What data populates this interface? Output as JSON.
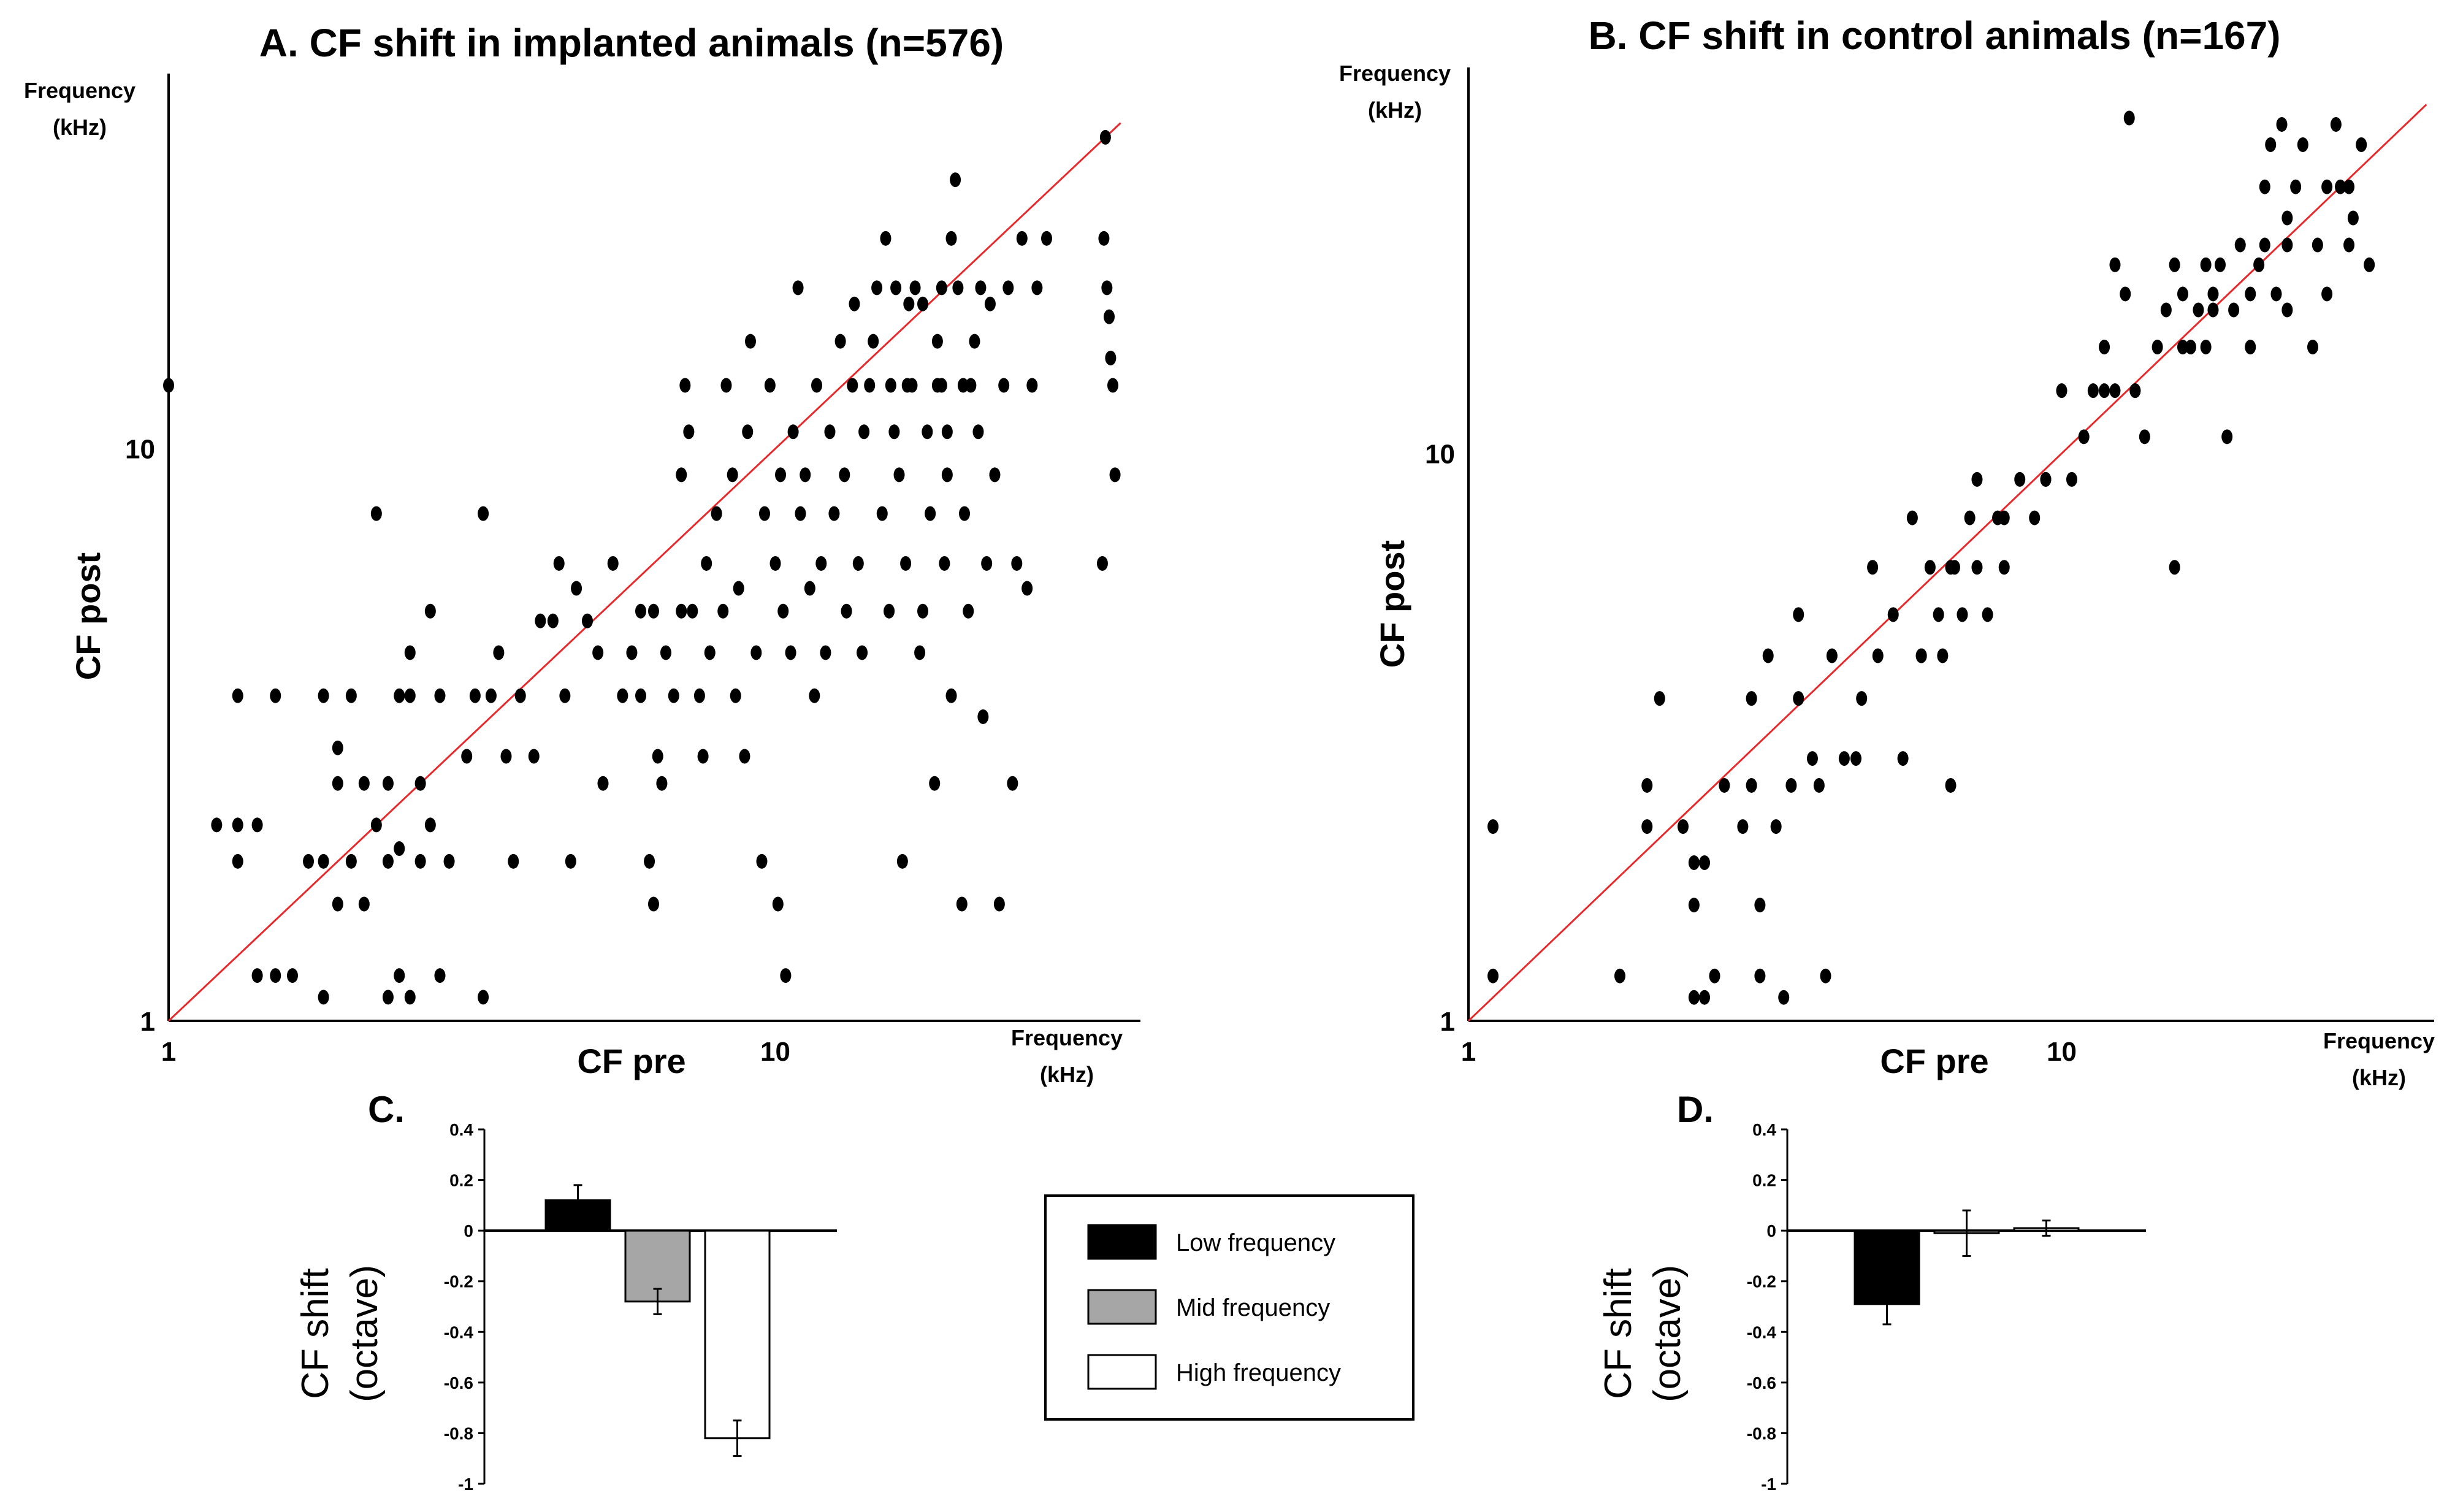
{
  "chart_data": [
    {
      "id": "A",
      "type": "scatter",
      "title": "A. CF shift in implanted animals (n=576)",
      "xlabel": "CF pre",
      "ylabel": "CF post",
      "x_unit": [
        "Frequency",
        "(kHz)"
      ],
      "y_unit": [
        "Frequency",
        "(kHz)"
      ],
      "x_scale": "log",
      "y_scale": "log",
      "xlim": [
        1,
        36
      ],
      "ylim": [
        1,
        42
      ],
      "xticks": [
        {
          "v": 1,
          "label": "1"
        },
        {
          "v": 10,
          "label": "10"
        }
      ],
      "yticks": [
        {
          "v": 1,
          "label": "1"
        },
        {
          "v": 10,
          "label": "10"
        }
      ],
      "identity_line": true,
      "points": [
        [
          1.0,
          12.9
        ],
        [
          1.2,
          2.2
        ],
        [
          1.3,
          2.2
        ],
        [
          1.3,
          1.9
        ],
        [
          1.3,
          3.7
        ],
        [
          1.4,
          1.2
        ],
        [
          1.4,
          2.2
        ],
        [
          1.5,
          1.2
        ],
        [
          1.5,
          3.7
        ],
        [
          1.6,
          1.2
        ],
        [
          1.7,
          1.9
        ],
        [
          1.8,
          1.1
        ],
        [
          1.8,
          1.9
        ],
        [
          1.8,
          3.7
        ],
        [
          1.9,
          3.0
        ],
        [
          1.9,
          1.6
        ],
        [
          1.9,
          2.6
        ],
        [
          2.0,
          3.7
        ],
        [
          2.0,
          1.9
        ],
        [
          2.1,
          1.6
        ],
        [
          2.1,
          2.6
        ],
        [
          2.2,
          7.7
        ],
        [
          2.2,
          2.2
        ],
        [
          2.3,
          1.1
        ],
        [
          2.3,
          1.9
        ],
        [
          2.3,
          2.6
        ],
        [
          2.4,
          1.2
        ],
        [
          2.4,
          2.0
        ],
        [
          2.4,
          3.7
        ],
        [
          2.5,
          1.1
        ],
        [
          2.5,
          4.4
        ],
        [
          2.5,
          3.7
        ],
        [
          2.6,
          2.6
        ],
        [
          2.6,
          1.9
        ],
        [
          2.7,
          5.2
        ],
        [
          2.7,
          2.2
        ],
        [
          2.8,
          1.2
        ],
        [
          2.8,
          3.7
        ],
        [
          2.9,
          1.9
        ],
        [
          3.1,
          2.9
        ],
        [
          3.2,
          3.7
        ],
        [
          3.3,
          1.1
        ],
        [
          3.3,
          7.7
        ],
        [
          3.4,
          3.7
        ],
        [
          3.5,
          4.4
        ],
        [
          3.6,
          2.9
        ],
        [
          3.7,
          1.9
        ],
        [
          3.8,
          3.7
        ],
        [
          4.0,
          2.9
        ],
        [
          4.1,
          5.0
        ],
        [
          4.3,
          5.0
        ],
        [
          4.4,
          6.3
        ],
        [
          4.5,
          3.7
        ],
        [
          4.6,
          1.9
        ],
        [
          4.7,
          5.7
        ],
        [
          4.9,
          5.0
        ],
        [
          5.1,
          4.4
        ],
        [
          5.2,
          2.6
        ],
        [
          5.4,
          6.3
        ],
        [
          5.6,
          3.7
        ],
        [
          5.8,
          4.4
        ],
        [
          6.0,
          3.7
        ],
        [
          6.0,
          5.2
        ],
        [
          6.2,
          1.9
        ],
        [
          6.3,
          1.6
        ],
        [
          6.3,
          5.2
        ],
        [
          6.4,
          2.9
        ],
        [
          6.5,
          2.6
        ],
        [
          6.6,
          4.4
        ],
        [
          6.8,
          3.7
        ],
        [
          7.0,
          5.2
        ],
        [
          7.0,
          9.0
        ],
        [
          7.1,
          12.9
        ],
        [
          7.2,
          10.7
        ],
        [
          7.3,
          5.2
        ],
        [
          7.5,
          3.7
        ],
        [
          7.6,
          2.9
        ],
        [
          7.7,
          6.3
        ],
        [
          7.8,
          4.4
        ],
        [
          8.0,
          7.7
        ],
        [
          8.2,
          5.2
        ],
        [
          8.3,
          12.9
        ],
        [
          8.5,
          9.0
        ],
        [
          8.6,
          3.7
        ],
        [
          8.7,
          5.7
        ],
        [
          8.9,
          2.9
        ],
        [
          9.0,
          10.7
        ],
        [
          9.1,
          15.4
        ],
        [
          9.3,
          4.4
        ],
        [
          9.5,
          1.9
        ],
        [
          9.6,
          7.7
        ],
        [
          9.8,
          12.9
        ],
        [
          10.0,
          6.3
        ],
        [
          10.1,
          1.6
        ],
        [
          10.2,
          9.0
        ],
        [
          10.3,
          5.2
        ],
        [
          10.4,
          1.2
        ],
        [
          10.6,
          4.4
        ],
        [
          10.7,
          10.7
        ],
        [
          10.9,
          19.1
        ],
        [
          11.0,
          7.7
        ],
        [
          11.2,
          9.0
        ],
        [
          11.4,
          5.7
        ],
        [
          11.6,
          3.7
        ],
        [
          11.7,
          12.9
        ],
        [
          11.9,
          6.3
        ],
        [
          12.1,
          4.4
        ],
        [
          12.3,
          10.7
        ],
        [
          12.5,
          7.7
        ],
        [
          12.8,
          15.4
        ],
        [
          13.0,
          9.0
        ],
        [
          13.1,
          5.2
        ],
        [
          13.4,
          12.9
        ],
        [
          13.5,
          17.9
        ],
        [
          13.7,
          6.3
        ],
        [
          13.9,
          4.4
        ],
        [
          14.0,
          10.7
        ],
        [
          14.3,
          12.9
        ],
        [
          14.5,
          15.4
        ],
        [
          14.7,
          19.1
        ],
        [
          15.0,
          7.7
        ],
        [
          15.2,
          23.3
        ],
        [
          15.4,
          5.2
        ],
        [
          15.5,
          12.9
        ],
        [
          15.7,
          10.7
        ],
        [
          16.0,
          9.0
        ],
        [
          16.2,
          1.9
        ],
        [
          16.4,
          6.3
        ],
        [
          16.6,
          17.9
        ],
        [
          16.8,
          12.9
        ],
        [
          17.0,
          19.1
        ],
        [
          17.3,
          4.4
        ],
        [
          17.5,
          5.2
        ],
        [
          17.8,
          10.7
        ],
        [
          18.0,
          7.7
        ],
        [
          18.3,
          2.6
        ],
        [
          18.5,
          15.4
        ],
        [
          18.8,
          12.9
        ],
        [
          19.0,
          6.3
        ],
        [
          19.2,
          9.0
        ],
        [
          19.5,
          3.7
        ],
        [
          19.8,
          29.5
        ],
        [
          20.0,
          19.1
        ],
        [
          20.3,
          1.6
        ],
        [
          20.5,
          7.7
        ],
        [
          20.8,
          5.2
        ],
        [
          21.0,
          12.9
        ],
        [
          21.3,
          15.4
        ],
        [
          21.6,
          10.7
        ],
        [
          22.0,
          3.4
        ],
        [
          22.3,
          6.3
        ],
        [
          22.6,
          17.9
        ],
        [
          23.0,
          9.0
        ],
        [
          23.4,
          1.6
        ],
        [
          23.8,
          12.9
        ],
        [
          24.2,
          19.1
        ],
        [
          24.6,
          2.6
        ],
        [
          25.0,
          6.3
        ],
        [
          25.5,
          23.3
        ],
        [
          26.0,
          5.7
        ],
        [
          26.5,
          12.9
        ],
        [
          27.0,
          19.1
        ],
        [
          28.0,
          23.3
        ],
        [
          35.0,
          35.0
        ],
        [
          34.8,
          23.3
        ],
        [
          35.2,
          19.1
        ],
        [
          35.5,
          17.0
        ],
        [
          35.7,
          14.4
        ],
        [
          36.0,
          12.9
        ],
        [
          36.3,
          9.0
        ],
        [
          34.6,
          6.3
        ],
        [
          18.8,
          19.1
        ],
        [
          19.5,
          23.3
        ],
        [
          18.5,
          12.9
        ],
        [
          16.5,
          12.9
        ],
        [
          17.5,
          17.9
        ],
        [
          15.8,
          19.1
        ],
        [
          20.4,
          12.9
        ],
        [
          21.8,
          19.1
        ],
        [
          19.2,
          10.7
        ]
      ]
    },
    {
      "id": "B",
      "type": "scatter",
      "title": "B. CF shift in control animals (n=167)",
      "xlabel": "CF pre",
      "ylabel": "CF post",
      "x_unit": [
        "Frequency",
        "(kHz)"
      ],
      "y_unit": [
        "Frequency",
        "(kHz)"
      ],
      "x_scale": "log",
      "y_scale": "log",
      "xlim": [
        1,
        40
      ],
      "ylim": [
        1,
        45
      ],
      "xticks": [
        {
          "v": 1,
          "label": "1"
        },
        {
          "v": 10,
          "label": "10"
        }
      ],
      "yticks": [
        {
          "v": 1,
          "label": "1"
        },
        {
          "v": 10,
          "label": "10"
        }
      ],
      "identity_line": true,
      "points": [
        [
          1.1,
          1.2
        ],
        [
          1.1,
          2.2
        ],
        [
          1.8,
          1.2
        ],
        [
          2.0,
          2.2
        ],
        [
          2.0,
          2.6
        ],
        [
          2.1,
          3.7
        ],
        [
          2.3,
          2.2
        ],
        [
          2.4,
          1.1
        ],
        [
          2.4,
          1.9
        ],
        [
          2.4,
          1.6
        ],
        [
          2.5,
          1.1
        ],
        [
          2.5,
          1.9
        ],
        [
          2.6,
          1.2
        ],
        [
          2.7,
          2.6
        ],
        [
          2.9,
          2.2
        ],
        [
          3.0,
          2.6
        ],
        [
          3.0,
          3.7
        ],
        [
          3.1,
          1.6
        ],
        [
          3.1,
          1.2
        ],
        [
          3.2,
          4.4
        ],
        [
          3.3,
          2.2
        ],
        [
          3.4,
          1.1
        ],
        [
          3.5,
          2.6
        ],
        [
          3.6,
          5.2
        ],
        [
          3.8,
          2.9
        ],
        [
          3.9,
          2.6
        ],
        [
          4.0,
          1.2
        ],
        [
          4.1,
          4.4
        ],
        [
          4.3,
          2.9
        ],
        [
          4.5,
          2.9
        ],
        [
          4.6,
          3.7
        ],
        [
          4.8,
          6.3
        ],
        [
          4.9,
          4.4
        ],
        [
          5.2,
          5.2
        ],
        [
          5.4,
          2.9
        ],
        [
          5.6,
          7.7
        ],
        [
          5.8,
          4.4
        ],
        [
          6.0,
          6.3
        ],
        [
          6.2,
          5.2
        ],
        [
          6.3,
          4.4
        ],
        [
          6.5,
          2.6
        ],
        [
          6.6,
          6.3
        ],
        [
          6.8,
          5.2
        ],
        [
          7.0,
          7.7
        ],
        [
          7.2,
          9.0
        ],
        [
          7.5,
          5.2
        ],
        [
          7.8,
          7.7
        ],
        [
          8.0,
          6.3
        ],
        [
          8.5,
          9.0
        ],
        [
          9.0,
          7.7
        ],
        [
          9.4,
          9.0
        ],
        [
          10.0,
          12.9
        ],
        [
          10.4,
          9.0
        ],
        [
          10.9,
          10.7
        ],
        [
          11.3,
          12.9
        ],
        [
          11.8,
          15.4
        ],
        [
          12.3,
          12.9
        ],
        [
          12.8,
          19.1
        ],
        [
          13.3,
          12.9
        ],
        [
          13.8,
          10.7
        ],
        [
          14.5,
          15.4
        ],
        [
          15.0,
          17.9
        ],
        [
          15.5,
          6.3
        ],
        [
          16.0,
          19.1
        ],
        [
          16.5,
          15.4
        ],
        [
          17.0,
          17.9
        ],
        [
          17.5,
          15.4
        ],
        [
          18.0,
          19.1
        ],
        [
          18.5,
          21.5
        ],
        [
          19.0,
          10.7
        ],
        [
          19.5,
          17.9
        ],
        [
          20.0,
          23.3
        ],
        [
          20.8,
          15.4
        ],
        [
          21.5,
          21.5
        ],
        [
          22.0,
          29.5
        ],
        [
          22.5,
          35.0
        ],
        [
          23.0,
          19.1
        ],
        [
          23.5,
          38.0
        ],
        [
          24.0,
          26.0
        ],
        [
          24.8,
          29.5
        ],
        [
          25.5,
          35.0
        ],
        [
          26.5,
          15.4
        ],
        [
          27.0,
          23.3
        ],
        [
          28.0,
          19.1
        ],
        [
          29.0,
          38.0
        ],
        [
          29.5,
          29.5
        ],
        [
          30.5,
          23.3
        ],
        [
          31.0,
          26.0
        ],
        [
          32.0,
          35.0
        ],
        [
          33.0,
          21.5
        ],
        [
          15.5,
          21.5
        ],
        [
          12.3,
          21.5
        ],
        [
          24.0,
          17.9
        ],
        [
          22.0,
          23.3
        ],
        [
          17.5,
          21.5
        ],
        [
          9.4,
          9.0
        ],
        [
          6.5,
          6.3
        ],
        [
          13.3,
          12.9
        ],
        [
          18.0,
          17.9
        ],
        [
          28.0,
          29.5
        ],
        [
          8.0,
          7.7
        ],
        [
          5.8,
          4.4
        ],
        [
          16.0,
          15.4
        ],
        [
          24.0,
          23.3
        ],
        [
          11.8,
          12.9
        ],
        [
          20.8,
          19.1
        ],
        [
          30.5,
          29.5
        ],
        [
          7.2,
          6.3
        ],
        [
          3.6,
          3.7
        ],
        [
          13.0,
          39.0
        ]
      ]
    },
    {
      "id": "C",
      "type": "bar",
      "panel_label": "C.",
      "ylabel": [
        "CF shift",
        "(octave)"
      ],
      "ylim": [
        -1,
        0.4
      ],
      "yticks": [
        "0.4",
        "0.2",
        "0",
        "-0.2",
        "-0.4",
        "-0.6",
        "-0.8",
        "-1"
      ],
      "categories": [
        "Low frequency",
        "Mid frequency",
        "High frequency"
      ],
      "values": [
        0.12,
        -0.28,
        -0.82
      ],
      "errors": [
        0.06,
        0.05,
        0.07
      ],
      "colors": [
        "#000000",
        "#a6a6a6",
        "#ffffff"
      ]
    },
    {
      "id": "D",
      "type": "bar",
      "panel_label": "D.",
      "ylabel": [
        "CF shift",
        "(octave)"
      ],
      "ylim": [
        -1,
        0.4
      ],
      "yticks": [
        "0.4",
        "0.2",
        "0",
        "-0.2",
        "-0.4",
        "-0.6",
        "-0.8",
        "-1"
      ],
      "categories": [
        "Low frequency",
        "Mid frequency",
        "High frequency"
      ],
      "values": [
        -0.29,
        -0.01,
        0.01
      ],
      "errors": [
        0.08,
        0.09,
        0.03
      ],
      "colors": [
        "#000000",
        "#a6a6a6",
        "#ffffff"
      ]
    }
  ],
  "legend": {
    "items": [
      {
        "label": "Low frequency",
        "color": "#000000"
      },
      {
        "label": "Mid frequency",
        "color": "#a6a6a6"
      },
      {
        "label": "High frequency",
        "color": "#ffffff"
      }
    ]
  }
}
